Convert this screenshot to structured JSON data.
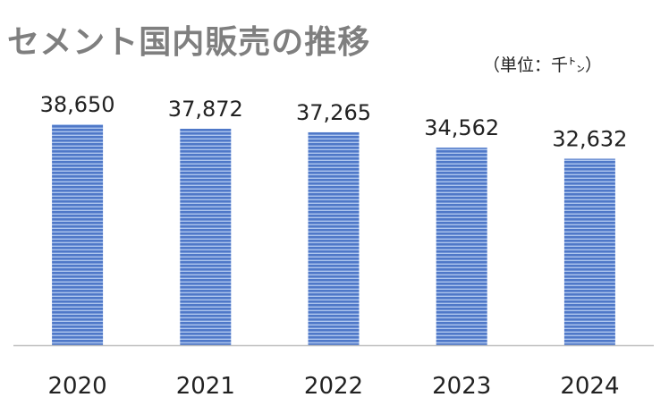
{
  "title": "セメント国内販売の推移",
  "unit_label": "（単位：千㌧）",
  "colors": {
    "bar": "#4f78c8",
    "bar_stripe": "#aec6ee",
    "axis": "#bfbfbf",
    "title": "#7f7f7f",
    "text": "#222222"
  },
  "chart_data": {
    "type": "bar",
    "title": "セメント国内販売の推移",
    "categories": [
      "2020",
      "2021",
      "2022",
      "2023",
      "2024"
    ],
    "values": [
      38650,
      37872,
      37265,
      34562,
      32632
    ],
    "data_labels": [
      "38,650",
      "37,872",
      "37,265",
      "34,562",
      "32,632"
    ],
    "unit": "（単位：千㌧）",
    "xlabel": "",
    "ylabel": "",
    "grid": false,
    "legend": "none"
  }
}
